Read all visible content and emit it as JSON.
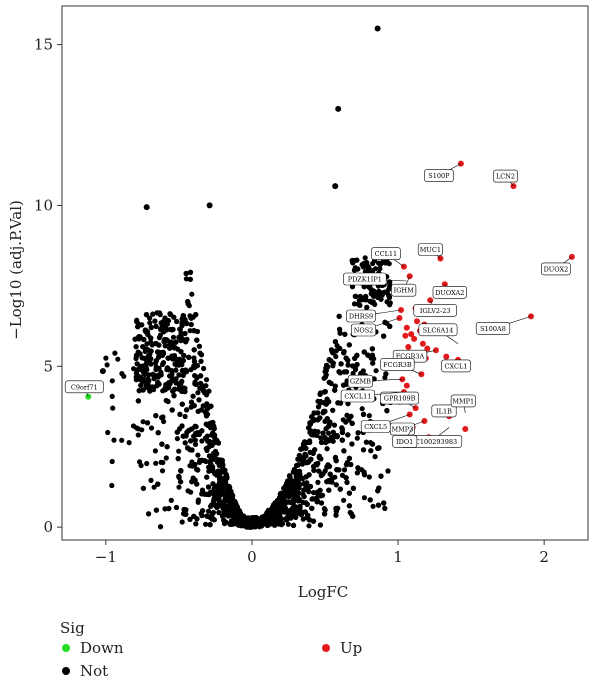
{
  "chart_data": {
    "type": "scatter",
    "title": "",
    "xlabel": "LogFC",
    "ylabel": "−Log10 (adj.P.Val)",
    "xlim": [
      -1.3,
      2.3
    ],
    "ylim": [
      -0.4,
      16.2
    ],
    "xticks": [
      -1,
      0,
      1,
      2
    ],
    "yticks": [
      0,
      5,
      10,
      15
    ],
    "grid": false,
    "legend": {
      "title": "Sig",
      "placement": "bottom",
      "entries": [
        {
          "name": "Down",
          "color": "#22dd22"
        },
        {
          "name": "Up",
          "color": "#e31a1c"
        },
        {
          "name": "Not",
          "color": "#000000"
        }
      ]
    },
    "series": [
      {
        "name": "Down",
        "color": "#22dd22",
        "x": [
          -1.12
        ],
        "y": [
          4.05
        ]
      },
      {
        "name": "Up",
        "color": "#e31a1c",
        "x": [
          1.43,
          1.79,
          2.19,
          1.04,
          1.08,
          1.29,
          1.32,
          1.91,
          1.12,
          1.02,
          1.22,
          1.13,
          1.18,
          1.01,
          1.06,
          1.09,
          1.15,
          1.05,
          1.11,
          1.17,
          1.07,
          1.2,
          1.09,
          1.19,
          1.26,
          1.33,
          1.41,
          1.03,
          1.06,
          1.04,
          1.01,
          1.26,
          1.12,
          1.08,
          1.18,
          1.1,
          1.35,
          1.21,
          1.46,
          1.16
        ],
        "y": [
          11.3,
          10.6,
          8.4,
          8.1,
          7.8,
          8.35,
          7.55,
          6.55,
          6.8,
          6.75,
          7.05,
          6.4,
          6.3,
          6.5,
          6.2,
          6.0,
          6.1,
          5.95,
          5.85,
          5.7,
          5.6,
          5.55,
          5.4,
          5.25,
          5.5,
          5.3,
          5.2,
          4.6,
          4.4,
          4.2,
          3.9,
          3.55,
          3.7,
          3.5,
          3.3,
          3.1,
          3.45,
          2.8,
          3.05,
          4.75
        ]
      },
      {
        "name": "Not",
        "color": "#000000",
        "x": [
          0.86,
          0.59,
          0.57,
          -0.72,
          -0.29,
          -1.02
        ],
        "y": [
          15.5,
          13.0,
          10.6,
          9.95,
          10.0,
          4.85
        ]
      }
    ],
    "annotations": [
      {
        "text": "S100P",
        "x": 1.43,
        "y": 11.3
      },
      {
        "text": "LCN2",
        "x": 1.79,
        "y": 10.6
      },
      {
        "text": "CCL11",
        "x": 1.04,
        "y": 8.1
      },
      {
        "text": "MUC1",
        "x": 1.29,
        "y": 8.35
      },
      {
        "text": "DUOX2",
        "x": 2.19,
        "y": 8.4
      },
      {
        "text": "IGHM",
        "x": 1.08,
        "y": 7.8
      },
      {
        "text": "PDZK1IP1",
        "x": 1.06,
        "y": 7.65
      },
      {
        "text": "DUOXA2",
        "x": 1.32,
        "y": 7.55
      },
      {
        "text": "DHRS9",
        "x": 1.02,
        "y": 6.75
      },
      {
        "text": "IGLV2-23",
        "x": 1.22,
        "y": 7.05
      },
      {
        "text": "NOS2",
        "x": 1.01,
        "y": 6.5
      },
      {
        "text": "SLC6A14",
        "x": 1.41,
        "y": 5.7
      },
      {
        "text": "S100A8",
        "x": 1.91,
        "y": 6.55
      },
      {
        "text": "FCGR3A",
        "x": 1.26,
        "y": 5.5
      },
      {
        "text": "CXCL1",
        "x": 1.41,
        "y": 5.2
      },
      {
        "text": "FCGR3B",
        "x": 1.16,
        "y": 4.75
      },
      {
        "text": "GZMB",
        "x": 1.03,
        "y": 4.6
      },
      {
        "text": "GPR109B",
        "x": 1.12,
        "y": 3.7
      },
      {
        "text": "IL1B",
        "x": 1.26,
        "y": 3.55
      },
      {
        "text": "CXCL11",
        "x": 1.04,
        "y": 4.2
      },
      {
        "text": "MMP1",
        "x": 1.46,
        "y": 3.55
      },
      {
        "text": "MMP3",
        "x": 1.18,
        "y": 3.3
      },
      {
        "text": "CXCL5",
        "x": 1.08,
        "y": 3.5
      },
      {
        "text": "LOC100293983",
        "x": 1.35,
        "y": 3.1
      },
      {
        "text": "IDO1",
        "x": 1.1,
        "y": 3.1
      },
      {
        "text": "C9orf71",
        "x": -1.12,
        "y": 4.05
      }
    ]
  }
}
